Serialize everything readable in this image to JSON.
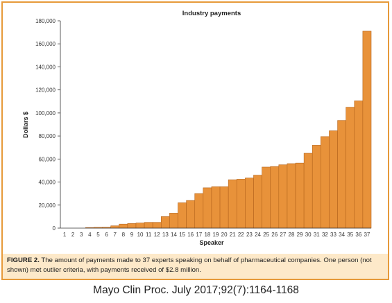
{
  "chart_data": {
    "type": "bar",
    "title": "Industry payments",
    "xlabel": "Speaker",
    "ylabel": "Dollars $",
    "ylim": [
      0,
      180000
    ],
    "yticks": [
      0,
      20000,
      40000,
      60000,
      80000,
      100000,
      120000,
      140000,
      160000,
      180000
    ],
    "ytick_labels": [
      "0",
      "20,000",
      "40,000",
      "60,000",
      "80,000",
      "100,000",
      "120,000",
      "140,000",
      "160,000",
      "180,000"
    ],
    "categories": [
      "1",
      "2",
      "3",
      "4",
      "5",
      "6",
      "7",
      "8",
      "9",
      "10",
      "11",
      "12",
      "13",
      "14",
      "15",
      "16",
      "17",
      "18",
      "19",
      "20",
      "21",
      "22",
      "23",
      "24",
      "25",
      "26",
      "27",
      "28",
      "29",
      "30",
      "31",
      "32",
      "33",
      "34",
      "35",
      "36",
      "37"
    ],
    "values": [
      0,
      0,
      0,
      500,
      700,
      800,
      2000,
      3500,
      4000,
      4500,
      5000,
      5000,
      10000,
      13000,
      22000,
      24000,
      30000,
      35000,
      36000,
      36000,
      42000,
      42500,
      43500,
      46000,
      53000,
      53500,
      55000,
      56000,
      56500,
      65000,
      72000,
      79500,
      84500,
      93500,
      105000,
      110500,
      171000
    ],
    "bar_color": "#e8923a",
    "bar_edge_color": "#b5651d",
    "grid": false
  },
  "caption": {
    "label": "FIGURE 2.",
    "text": " The amount of payments made to 37 experts speaking on behalf of pharmaceutical companies. One person (not shown) met outlier criteria, with payments received of $2.8 million."
  },
  "source": "Mayo Clin Proc.  July 2017;92(7):1164-1168",
  "colors": {
    "frame": "#e69a3a",
    "caption_background": "#fde9c9"
  }
}
